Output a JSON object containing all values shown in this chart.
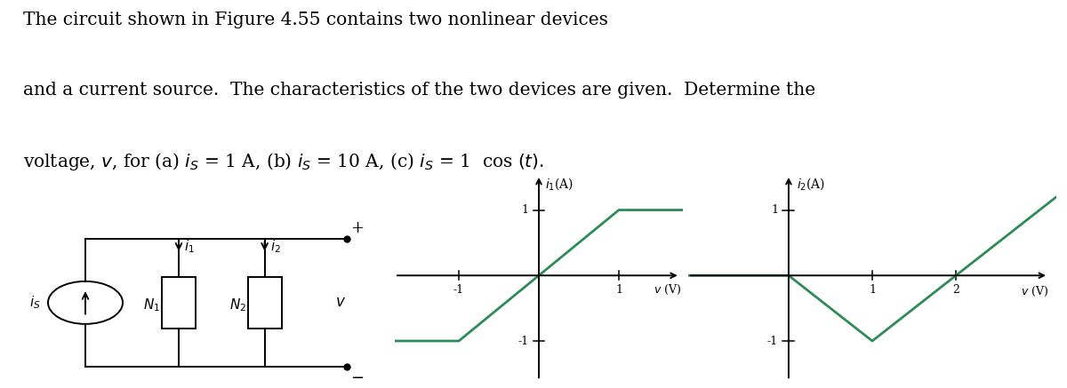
{
  "curve_color": "#2e8b57",
  "bg_color": "#ffffff",
  "lw": 1.4,
  "text_line1": "The circuit shown in Figure 4.55 contains two nonlinear devices",
  "text_line2": "and a current source.  The characteristics of the two devices are given.  Determine the",
  "text_line3": "voltage, $v$, for (a) $i_S$ = 1 A, (b) $i_S$ = 10 A, (c) $i_S$ = 1  cos $(t)$.",
  "graph1": {
    "title": "$i_1$(A)",
    "xlabel": "$v$ (V)",
    "xlim": [
      -1.8,
      1.8
    ],
    "ylim": [
      -1.6,
      1.6
    ],
    "xticks": [
      -1,
      1
    ],
    "yticks": [
      -1,
      1
    ],
    "curve_x": [
      -1.8,
      -1.0,
      1.0,
      1.8
    ],
    "curve_y": [
      -1.0,
      -1.0,
      1.0,
      1.0
    ]
  },
  "graph2": {
    "title": "$i_2$(A)",
    "xlabel": "$v$ (V)",
    "xlim": [
      -1.2,
      3.2
    ],
    "ylim": [
      -1.6,
      1.6
    ],
    "xticks": [
      1,
      2
    ],
    "yticks": [
      -1,
      1
    ],
    "curve_x": [
      -1.2,
      0.0,
      1.0,
      2.0,
      3.2
    ],
    "curve_y": [
      0.0,
      0.0,
      -1.0,
      0.0,
      1.2
    ]
  }
}
